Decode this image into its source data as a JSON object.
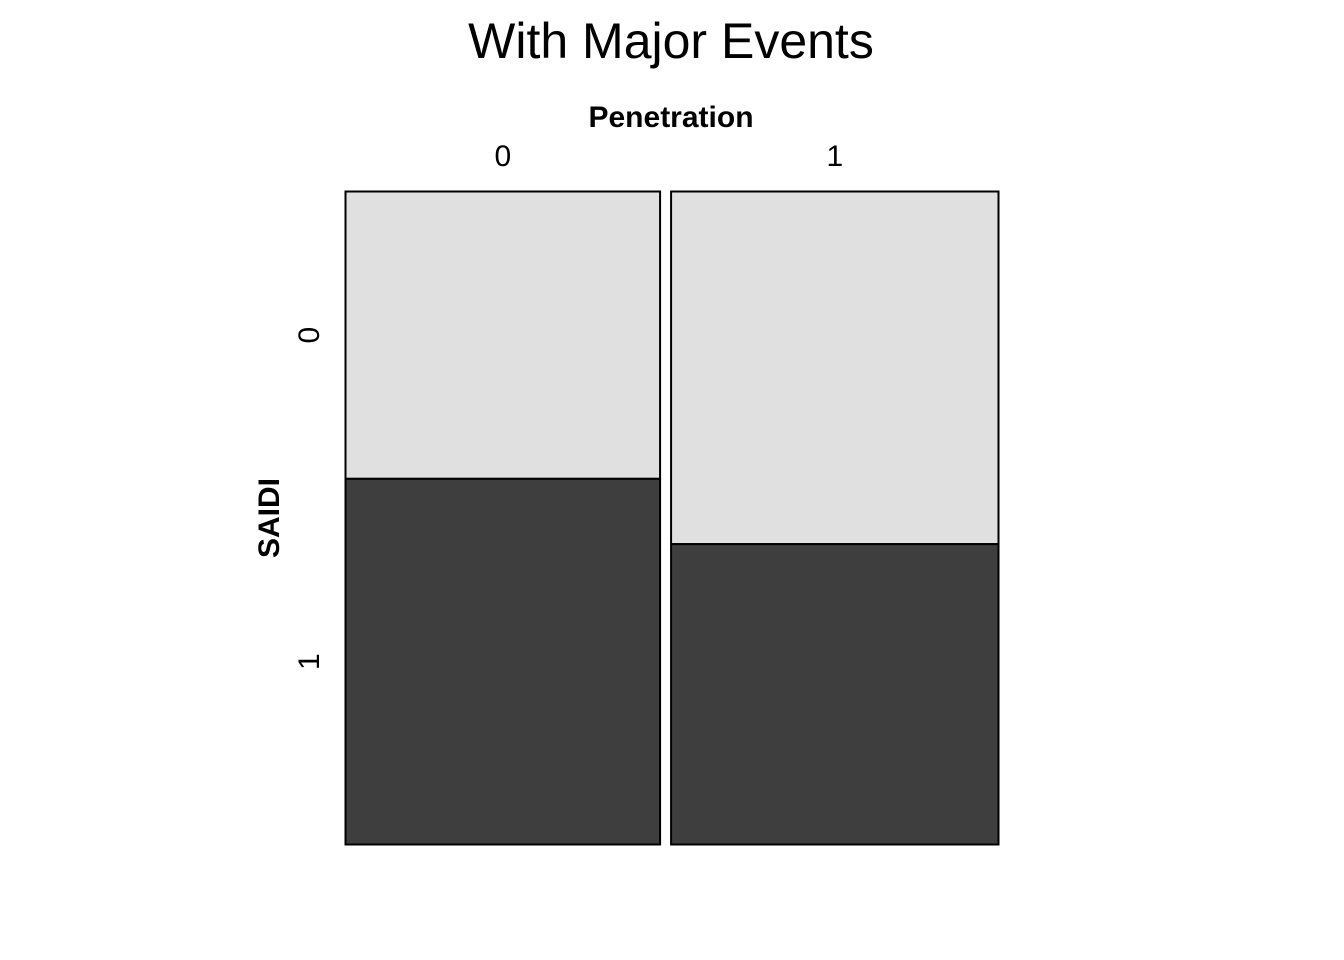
{
  "chart_data": {
    "type": "mosaic",
    "title": "With Major Events",
    "x_variable": "Penetration",
    "y_variable": "SAIDI",
    "x_levels": [
      "0",
      "1"
    ],
    "y_levels": [
      "0",
      "1"
    ],
    "column_proportions": [
      0.49,
      0.51
    ],
    "cells": [
      {
        "x": "0",
        "y": "0",
        "proportion": 0.44
      },
      {
        "x": "0",
        "y": "1",
        "proportion": 0.56
      },
      {
        "x": "1",
        "y": "0",
        "proportion": 0.54
      },
      {
        "x": "1",
        "y": "1",
        "proportion": 0.46
      }
    ],
    "colors": {
      "y_levels": {
        "0": "#e0e0e0",
        "1": "#3e3e3e"
      },
      "stroke": "#000000"
    },
    "legend": "none",
    "grid": false
  }
}
